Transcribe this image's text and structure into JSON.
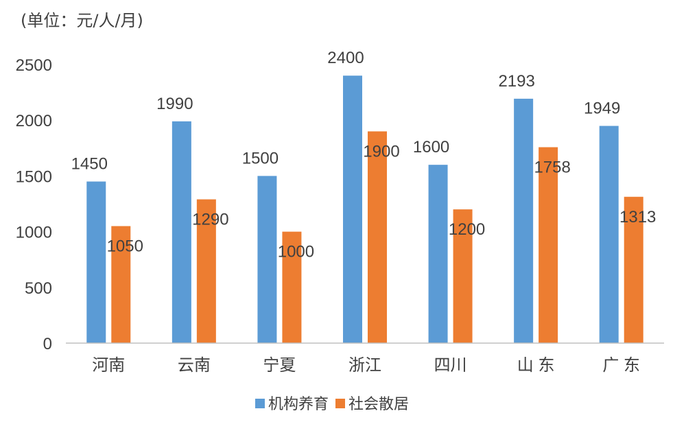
{
  "chart_data": {
    "type": "bar",
    "unit_label": "(单位：元/人/月)",
    "categories": [
      "河南",
      "云南",
      "宁夏",
      "浙江",
      "四川",
      "山 东",
      "广  东"
    ],
    "series": [
      {
        "name": "机构养育",
        "color": "#5B9BD5",
        "values": [
          1450,
          1990,
          1500,
          2400,
          1600,
          2193,
          1949
        ]
      },
      {
        "name": "社会散居",
        "color": "#ED7D31",
        "values": [
          1050,
          1290,
          1000,
          1900,
          1200,
          1758,
          1313
        ]
      }
    ],
    "ylim": [
      0,
      2500
    ],
    "yticks": [
      0,
      500,
      1000,
      1500,
      2000,
      2500
    ],
    "grid": false,
    "legend_position": "bottom",
    "data_labels": true
  }
}
